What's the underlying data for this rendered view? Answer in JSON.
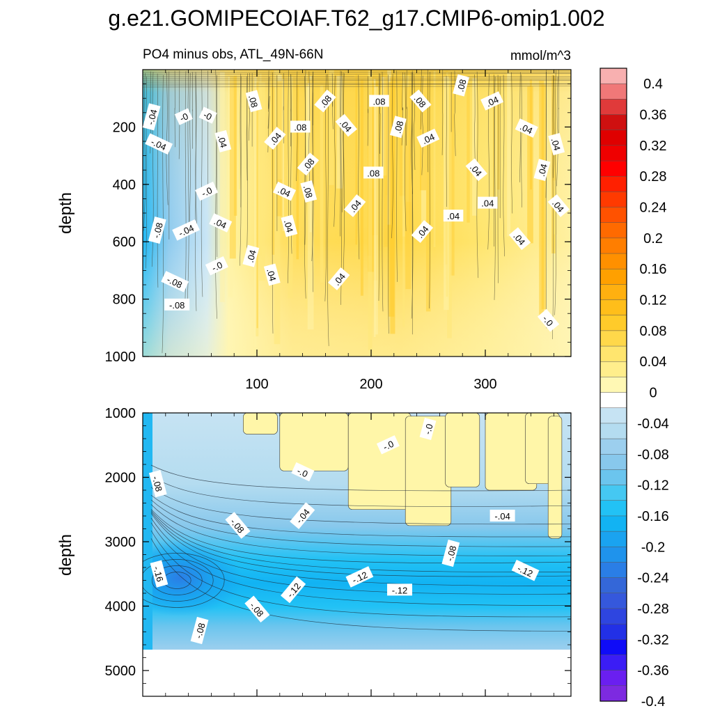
{
  "chart_data": {
    "type": "contour",
    "title": "g.e21.GOMIPECOIAF.T62_g17.CMIP6-omip1.002",
    "subtitle_left": "PO4 minus obs, ATL_49N-66N",
    "subtitle_right": "mmol/m^3",
    "panels": [
      {
        "name": "upper",
        "ylabel": "depth",
        "xlim": [
          0,
          375
        ],
        "ylim": [
          0,
          1000
        ],
        "y_inverted": true,
        "y_ticks": [
          "200",
          "400",
          "600",
          "800",
          "1000"
        ],
        "x_ticks": [
          "100",
          "200",
          "300"
        ],
        "field_summary": "positive anomaly (0.04-0.08) over most of the section, negative (-0.04 to -0.12) near x<60",
        "contour_labels": [
          {
            "text": "-.04",
            "x": 8,
            "y": 165
          },
          {
            "text": "-0",
            "x": 36,
            "y": 165
          },
          {
            "text": "-0",
            "x": 57,
            "y": 160
          },
          {
            "text": ".08",
            "x": 97,
            "y": 110
          },
          {
            "text": ".08",
            "x": 160,
            "y": 110
          },
          {
            "text": ".08",
            "x": 207,
            "y": 110
          },
          {
            "text": ".08",
            "x": 243,
            "y": 110
          },
          {
            "text": ".08",
            "x": 279,
            "y": 55
          },
          {
            "text": ".04",
            "x": 306,
            "y": 110
          },
          {
            "text": "-.04",
            "x": 14,
            "y": 260
          },
          {
            "text": ".04",
            "x": 70,
            "y": 250
          },
          {
            "text": ".04",
            "x": 116,
            "y": 240
          },
          {
            "text": ".08",
            "x": 138,
            "y": 200
          },
          {
            "text": ".04",
            "x": 178,
            "y": 195
          },
          {
            "text": ".08",
            "x": 224,
            "y": 200
          },
          {
            "text": ".04",
            "x": 250,
            "y": 240
          },
          {
            "text": ".04",
            "x": 336,
            "y": 205
          },
          {
            "text": ".04",
            "x": 362,
            "y": 260
          },
          {
            "text": ".08",
            "x": 145,
            "y": 330
          },
          {
            "text": ".08",
            "x": 202,
            "y": 360
          },
          {
            "text": ".04",
            "x": 292,
            "y": 350
          },
          {
            "text": ".04",
            "x": 350,
            "y": 350
          },
          {
            "text": "-.0",
            "x": 56,
            "y": 425
          },
          {
            "text": ".04",
            "x": 124,
            "y": 425
          },
          {
            "text": ".08",
            "x": 145,
            "y": 425
          },
          {
            "text": ".04",
            "x": 186,
            "y": 475
          },
          {
            "text": ".04",
            "x": 302,
            "y": 465
          },
          {
            "text": ".04",
            "x": 364,
            "y": 475
          },
          {
            "text": "-.08",
            "x": 13,
            "y": 560
          },
          {
            "text": "-.04",
            "x": 38,
            "y": 560
          },
          {
            "text": ".04",
            "x": 68,
            "y": 535
          },
          {
            "text": ".04",
            "x": 128,
            "y": 545
          },
          {
            "text": ".04",
            "x": 245,
            "y": 565
          },
          {
            "text": ".04",
            "x": 272,
            "y": 510
          },
          {
            "text": ".04",
            "x": 330,
            "y": 590
          },
          {
            "text": ".04",
            "x": 95,
            "y": 650
          },
          {
            "text": "-.0",
            "x": 65,
            "y": 685
          },
          {
            "text": "-.08",
            "x": 28,
            "y": 740
          },
          {
            "text": ".04",
            "x": 113,
            "y": 715
          },
          {
            "text": ".04",
            "x": 172,
            "y": 730
          },
          {
            "text": "-.08",
            "x": 30,
            "y": 820
          },
          {
            "text": "-.0",
            "x": 355,
            "y": 875
          }
        ]
      },
      {
        "name": "lower",
        "ylabel": "depth",
        "xlim": [
          0,
          375
        ],
        "ylim": [
          1000,
          5400
        ],
        "y_inverted": true,
        "y_ticks": [
          "1000",
          "2000",
          "3000",
          "4000",
          "5000"
        ],
        "x_ticks": [],
        "no_data_below_depth": 4650,
        "field_summary": "near-zero anomaly above 2000m for x>100, increasingly negative (-0.08 to -0.16) with depth; minimum near x~30, depth~3600",
        "contour_labels": [
          {
            "text": "-.0",
            "x": 250,
            "y": 1250
          },
          {
            "text": "-.0",
            "x": 215,
            "y": 1500
          },
          {
            "text": "-.0",
            "x": 140,
            "y": 1920
          },
          {
            "text": "-.08",
            "x": 13,
            "y": 2100
          },
          {
            "text": "-.04",
            "x": 140,
            "y": 2600
          },
          {
            "text": "-.04",
            "x": 315,
            "y": 2600
          },
          {
            "text": "-.08",
            "x": 83,
            "y": 2750
          },
          {
            "text": "-.08",
            "x": 270,
            "y": 3180
          },
          {
            "text": "-.12",
            "x": 190,
            "y": 3550
          },
          {
            "text": "-.12",
            "x": 335,
            "y": 3450
          },
          {
            "text": "-.16",
            "x": 14,
            "y": 3500
          },
          {
            "text": "-.12",
            "x": 132,
            "y": 3750
          },
          {
            "text": "-.12",
            "x": 225,
            "y": 3750
          },
          {
            "text": "-.08",
            "x": 100,
            "y": 4050
          },
          {
            "text": "-.08",
            "x": 50,
            "y": 4380
          }
        ]
      }
    ],
    "colorbar": {
      "levels": [
        "-0.4",
        "-0.38",
        "-0.36",
        "-0.34",
        "-0.32",
        "-0.3",
        "-0.28",
        "-0.26",
        "-0.24",
        "-0.22",
        "-0.2",
        "-0.18",
        "-0.16",
        "-0.14",
        "-0.12",
        "-0.1",
        "-0.08",
        "-0.06",
        "-0.04",
        "-0.02",
        "0",
        "0.02",
        "0.04",
        "0.06",
        "0.08",
        "0.1",
        "0.12",
        "0.14",
        "0.16",
        "0.18",
        "0.2",
        "0.22",
        "0.24",
        "0.26",
        "0.28",
        "0.3",
        "0.32",
        "0.34",
        "0.36",
        "0.38",
        "0.4"
      ],
      "labels": [
        "0.4",
        "0.36",
        "0.32",
        "0.28",
        "0.24",
        "0.2",
        "0.16",
        "0.12",
        "0.08",
        "0.04",
        "0",
        "-0.04",
        "-0.08",
        "-0.12",
        "-0.16",
        "-0.2",
        "-0.24",
        "-0.28",
        "-0.32",
        "-0.36",
        "-0.4"
      ],
      "colors": [
        "#7d2ae0",
        "#6a1ff0",
        "#3b1df5",
        "#0f0cf7",
        "#2230e6",
        "#2e45e0",
        "#3558dc",
        "#3467d8",
        "#2a7ee6",
        "#1f93ec",
        "#1aa3f0",
        "#12b3f3",
        "#22c2f5",
        "#45c8f2",
        "#6bc5ee",
        "#88c8ec",
        "#9ccfee",
        "#b4dcf0",
        "#c6e3f3",
        "#ffffff",
        "#fff8b4",
        "#ffee8c",
        "#ffe56e",
        "#ffd84a",
        "#ffcb2a",
        "#ffbe1a",
        "#ffb010",
        "#ffa000",
        "#ff9000",
        "#ff7e00",
        "#ff6a00",
        "#ff5200",
        "#ff3a00",
        "#ff2000",
        "#ff0000",
        "#ef0000",
        "#df0000",
        "#cf1010",
        "#e03a3a",
        "#f07878",
        "#f8b0b0"
      ]
    }
  },
  "colors": {
    "pos_low": "#fff7b0",
    "pos_mid": "#ffe56c",
    "pos_high": "#f5c53a",
    "neg_low": "#c6e3f3",
    "neg_mid": "#88c8ec",
    "neg_high": "#22b8f2",
    "neg_deep": "#2a7ee6"
  }
}
